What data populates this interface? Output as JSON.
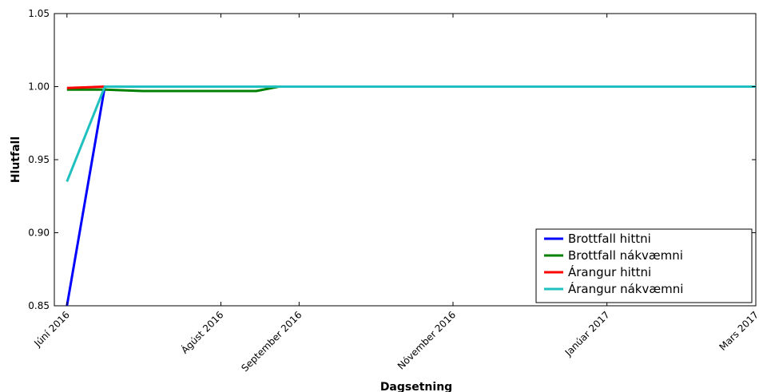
{
  "chart_data": {
    "type": "line",
    "xlabel": "Dagsetning",
    "ylabel": "Hlutfall",
    "ylim": [
      0.85,
      1.05
    ],
    "xlim": [
      "2016-05-27",
      "2017-03-01"
    ],
    "x_ticks": [
      {
        "date": "2016-06-01",
        "label": "Júní 2016"
      },
      {
        "date": "2016-08-01",
        "label": "Ágúst 2016"
      },
      {
        "date": "2016-09-01",
        "label": "September 2016"
      },
      {
        "date": "2016-11-01",
        "label": "Nóvember 2016"
      },
      {
        "date": "2017-01-01",
        "label": "Janúar 2017"
      },
      {
        "date": "2017-03-01",
        "label": "Mars 2017"
      }
    ],
    "y_ticks": [
      {
        "value": 0.85,
        "label": "0.85"
      },
      {
        "value": 0.9,
        "label": "0.90"
      },
      {
        "value": 0.95,
        "label": "0.95"
      },
      {
        "value": 1.0,
        "label": "1.00"
      },
      {
        "value": 1.05,
        "label": "1.05"
      }
    ],
    "grid": false,
    "legend_position": "bottom-right",
    "series": [
      {
        "name": "Brottfall hittni",
        "color": "#0000ff",
        "points": [
          {
            "x": "2016-06-01",
            "y": 0.85
          },
          {
            "x": "2016-06-16",
            "y": 1.0
          },
          {
            "x": "2016-08-23",
            "y": 1.0
          },
          {
            "x": "2017-03-01",
            "y": 1.0
          }
        ]
      },
      {
        "name": "Brottfall nákvæmni",
        "color": "#008000",
        "points": [
          {
            "x": "2016-06-01",
            "y": 0.998
          },
          {
            "x": "2016-06-16",
            "y": 0.998
          },
          {
            "x": "2016-07-01",
            "y": 0.997
          },
          {
            "x": "2016-08-15",
            "y": 0.997
          },
          {
            "x": "2016-08-24",
            "y": 1.0
          },
          {
            "x": "2017-03-01",
            "y": 1.0
          }
        ]
      },
      {
        "name": "Árangur hittni",
        "color": "#ff0000",
        "points": [
          {
            "x": "2016-06-01",
            "y": 0.999
          },
          {
            "x": "2016-06-16",
            "y": 1.0
          },
          {
            "x": "2017-03-01",
            "y": 1.0
          }
        ]
      },
      {
        "name": "Árangur nákvæmni",
        "color": "#20c0c0",
        "points": [
          {
            "x": "2016-06-01",
            "y": 0.935
          },
          {
            "x": "2016-06-16",
            "y": 1.0
          },
          {
            "x": "2017-03-01",
            "y": 1.0
          }
        ]
      }
    ]
  }
}
